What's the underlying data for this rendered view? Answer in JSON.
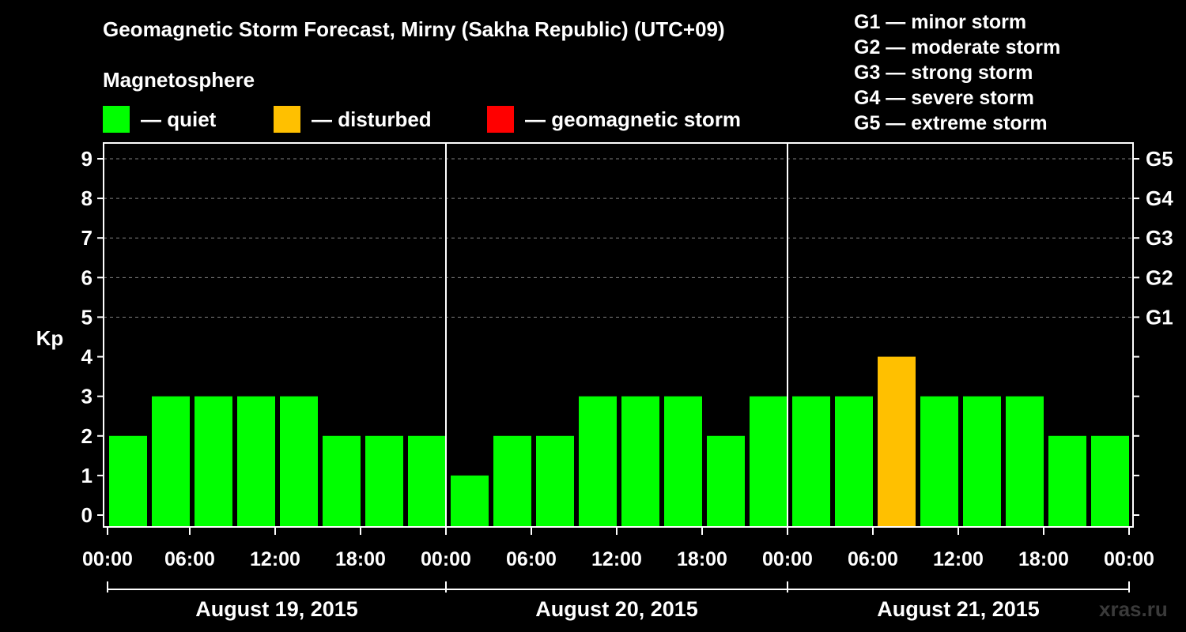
{
  "title": "Geomagnetic Storm Forecast, Mirny (Sakha Republic) (UTC+09)",
  "legend": {
    "heading": "Magnetosphere",
    "items": [
      {
        "label": "— quiet",
        "color": "#00ff00"
      },
      {
        "label": "— disturbed",
        "color": "#ffc000"
      },
      {
        "label": "— geomagnetic storm",
        "color": "#ff0000"
      }
    ]
  },
  "storm_scale": [
    "G1 — minor storm",
    "G2 — moderate storm",
    "G3 — strong storm",
    "G4 — severe storm",
    "G5 — extreme storm"
  ],
  "watermark": "xras.ru",
  "chart_data": {
    "type": "bar",
    "ylabel": "Kp",
    "ylim": [
      0,
      9
    ],
    "yticks": [
      0,
      1,
      2,
      3,
      4,
      5,
      6,
      7,
      8,
      9
    ],
    "right_axis_labels": [
      {
        "kp": 5,
        "label": "G1"
      },
      {
        "kp": 6,
        "label": "G2"
      },
      {
        "kp": 7,
        "label": "G3"
      },
      {
        "kp": 8,
        "label": "G4"
      },
      {
        "kp": 9,
        "label": "G5"
      }
    ],
    "grid": "dashed horizontal at Kp 5–9",
    "xtick_labels": [
      "00:00",
      "06:00",
      "12:00",
      "18:00",
      "00:00",
      "06:00",
      "12:00",
      "18:00",
      "00:00",
      "06:00",
      "12:00",
      "18:00",
      "00:00"
    ],
    "days": [
      "August 19, 2015",
      "August 20, 2015",
      "August 21, 2015"
    ],
    "interval_hours": 3,
    "values": [
      2,
      3,
      3,
      3,
      3,
      2,
      2,
      2,
      1,
      2,
      2,
      3,
      3,
      3,
      2,
      3,
      3,
      3,
      4,
      3,
      3,
      3,
      2,
      2
    ],
    "colors": {
      "quiet": "#00ff00",
      "disturbed": "#ffc000",
      "storm": "#ff0000"
    }
  }
}
